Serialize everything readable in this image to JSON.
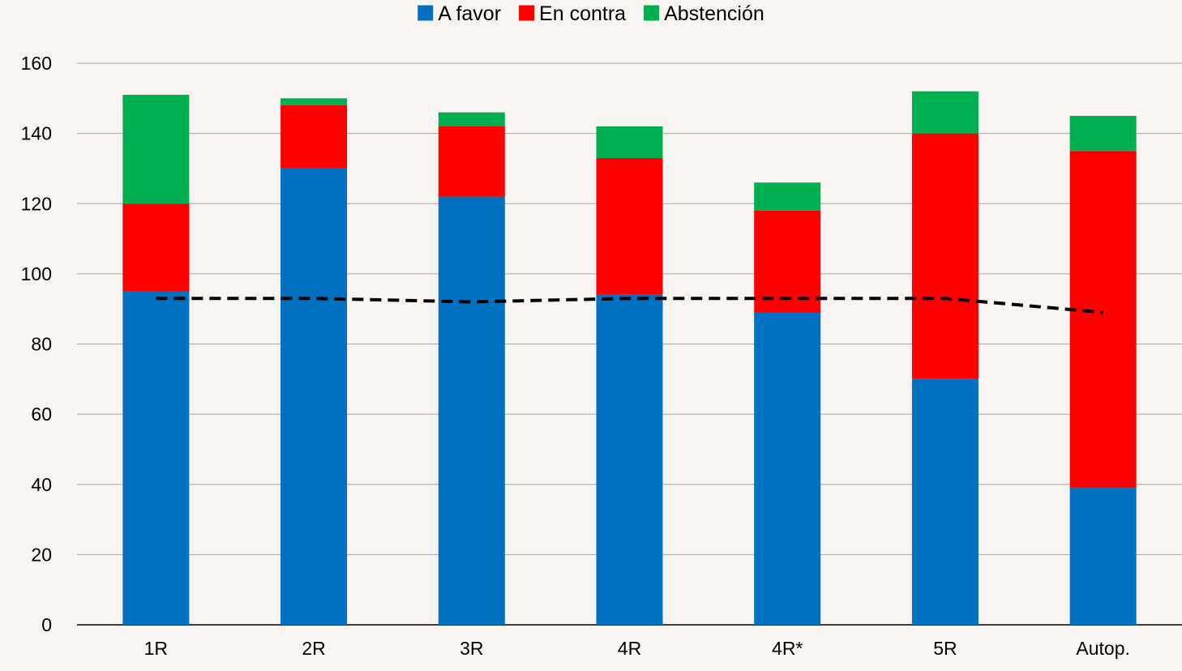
{
  "chart_data": {
    "type": "bar",
    "stacked": true,
    "categories": [
      "1R",
      "2R",
      "3R",
      "4R",
      "4R*",
      "5R",
      "Autop."
    ],
    "series": [
      {
        "name": "A favor",
        "color": "#0070c0",
        "values": [
          95,
          130,
          122,
          94,
          89,
          70,
          39
        ]
      },
      {
        "name": "En contra",
        "color": "#ff0000",
        "values": [
          25,
          18,
          20,
          39,
          29,
          70,
          96
        ]
      },
      {
        "name": "Abstención",
        "color": "#00b050",
        "values": [
          31,
          2,
          4,
          9,
          8,
          12,
          10
        ]
      }
    ],
    "threshold_line": {
      "style": "dashed",
      "color": "#000000",
      "values": [
        93,
        93,
        92,
        93,
        93,
        93,
        89
      ]
    },
    "y_ticks": [
      "0",
      "20",
      "40",
      "60",
      "80",
      "100",
      "120",
      "140",
      "160"
    ],
    "ylim": [
      0,
      160
    ],
    "grid": true,
    "legend_position": "top-center",
    "title": "",
    "xlabel": "",
    "ylabel": ""
  }
}
